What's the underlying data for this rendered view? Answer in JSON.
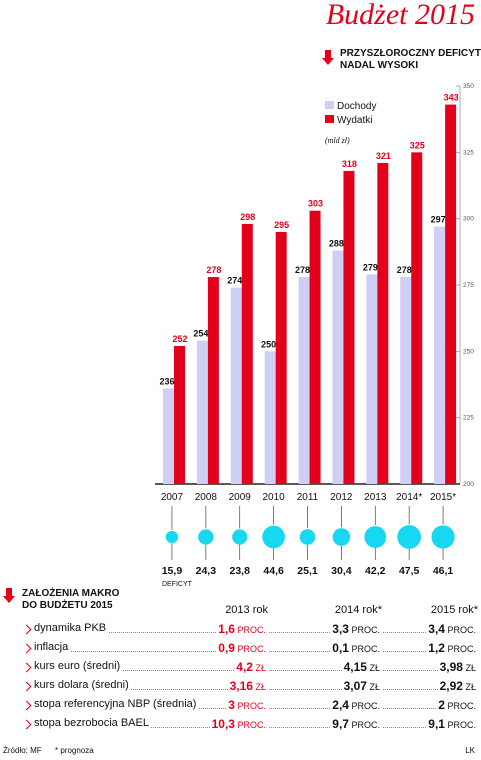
{
  "title": "Budżet 2015",
  "chart_heading": [
    "Przyszłoroczny deficyt",
    "nadal wysoki"
  ],
  "colors": {
    "dochody": "#cfcff5",
    "wydatki": "#e3001b",
    "deficit": "#17d8f0",
    "accent": "#e3001b"
  },
  "chart_data": {
    "type": "bar",
    "categories": [
      "2007",
      "2008",
      "2009",
      "2010",
      "2011",
      "2012",
      "2013",
      "2014*",
      "2015*"
    ],
    "series": [
      {
        "name": "Dochody",
        "values": [
          236,
          254,
          274,
          250,
          278,
          288,
          279,
          278,
          297
        ]
      },
      {
        "name": "Wydatki",
        "values": [
          252,
          278,
          298,
          295,
          303,
          318,
          321,
          325,
          343
        ]
      }
    ],
    "ylabel": "(mld zł)",
    "ylim": [
      200,
      350
    ],
    "yticks": [
      200,
      225,
      250,
      275,
      300,
      325,
      350
    ],
    "legend_position": "top-left",
    "deficit": {
      "label": "DEFICYT",
      "values": [
        "15,9",
        "24,3",
        "23,8",
        "44,6",
        "25,1",
        "30,4",
        "42,2",
        "47,5",
        "46,1"
      ]
    }
  },
  "table": {
    "heading": [
      "Założenia makro",
      "do budżetu 2015"
    ],
    "columns": [
      "2013 rok",
      "2014 rok*",
      "2015 rok*"
    ],
    "rows": [
      {
        "label": "dynamika PKB",
        "values": [
          "1,6",
          "3,3",
          "3,4"
        ],
        "unit": "PROC."
      },
      {
        "label": "inflacja",
        "values": [
          "0,9",
          "0,1",
          "1,2"
        ],
        "unit": "PROC."
      },
      {
        "label": "kurs euro (średni)",
        "values": [
          "4,2",
          "4,15",
          "3,98"
        ],
        "unit": "ZŁ"
      },
      {
        "label": "kurs dolara (średni)",
        "values": [
          "3,16",
          "3,07",
          "2,92"
        ],
        "unit": "ZŁ"
      },
      {
        "label": "stopa referencyjna NBP (średnia)",
        "values": [
          "3",
          "2,4",
          "2"
        ],
        "unit": "PROC."
      },
      {
        "label": "stopa bezrobocia BAEL",
        "values": [
          "10,3",
          "9,7",
          "9,1"
        ],
        "unit": "PROC."
      }
    ]
  },
  "footer": {
    "source": "Źródło: MF",
    "note": "* prognoza",
    "author": "LK"
  }
}
